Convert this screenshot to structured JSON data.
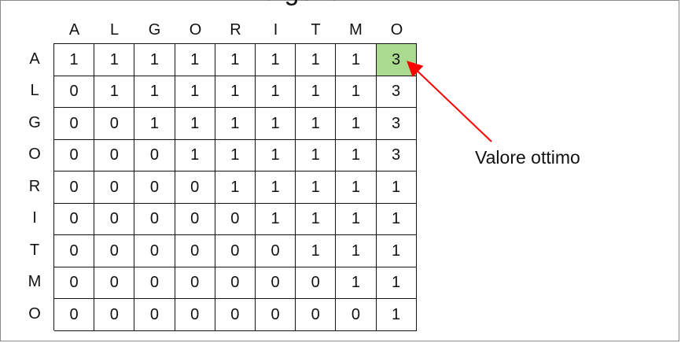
{
  "title_fragment": "algoritmi",
  "column_headers": [
    "A",
    "L",
    "G",
    "O",
    "R",
    "I",
    "T",
    "M",
    "O"
  ],
  "row_headers": [
    "A",
    "L",
    "G",
    "O",
    "R",
    "I",
    "T",
    "M",
    "O"
  ],
  "matrix": [
    [
      "1",
      "1",
      "1",
      "1",
      "1",
      "1",
      "1",
      "1",
      "3"
    ],
    [
      "0",
      "1",
      "1",
      "1",
      "1",
      "1",
      "1",
      "1",
      "3"
    ],
    [
      "0",
      "0",
      "1",
      "1",
      "1",
      "1",
      "1",
      "1",
      "3"
    ],
    [
      "0",
      "0",
      "0",
      "1",
      "1",
      "1",
      "1",
      "1",
      "3"
    ],
    [
      "0",
      "0",
      "0",
      "0",
      "1",
      "1",
      "1",
      "1",
      "1"
    ],
    [
      "0",
      "0",
      "0",
      "0",
      "0",
      "1",
      "1",
      "1",
      "1"
    ],
    [
      "0",
      "0",
      "0",
      "0",
      "0",
      "0",
      "1",
      "1",
      "1"
    ],
    [
      "0",
      "0",
      "0",
      "0",
      "0",
      "0",
      "0",
      "1",
      "1"
    ],
    [
      "0",
      "0",
      "0",
      "0",
      "0",
      "0",
      "0",
      "0",
      "1"
    ]
  ],
  "highlight": {
    "row": 0,
    "column": 8,
    "color": "#a9da8f"
  },
  "annotation": {
    "label": "Valore ottimo",
    "arrow_color": "#ff0000"
  }
}
